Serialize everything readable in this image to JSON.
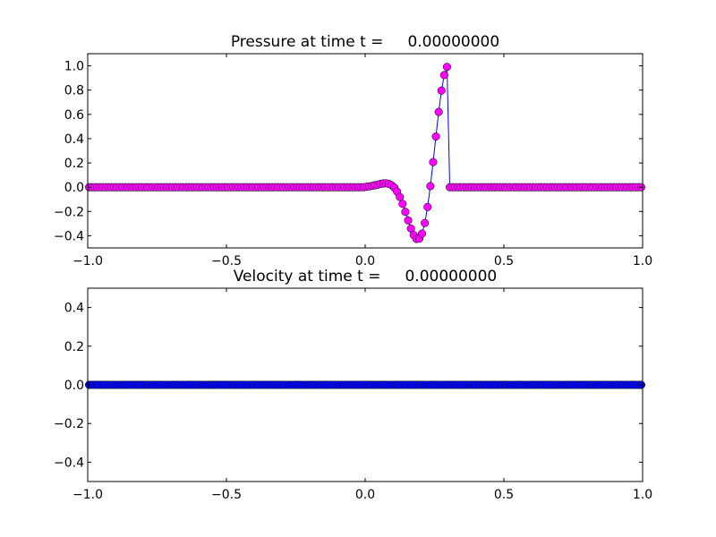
{
  "chart_data": [
    {
      "type": "line",
      "title": "Pressure at time t =     0.00000000",
      "x": [
        -0.995,
        -0.985,
        -0.975,
        -0.965,
        -0.955,
        -0.945,
        -0.935,
        -0.925,
        -0.915,
        -0.905,
        -0.895,
        -0.885,
        -0.875,
        -0.865,
        -0.855,
        -0.845,
        -0.835,
        -0.825,
        -0.815,
        -0.805,
        -0.795,
        -0.785,
        -0.775,
        -0.765,
        -0.755,
        -0.745,
        -0.735,
        -0.725,
        -0.715,
        -0.705,
        -0.695,
        -0.685,
        -0.675,
        -0.665,
        -0.655,
        -0.645,
        -0.635,
        -0.625,
        -0.615,
        -0.605,
        -0.595,
        -0.585,
        -0.575,
        -0.565,
        -0.555,
        -0.545,
        -0.535,
        -0.525,
        -0.515,
        -0.505,
        -0.495,
        -0.485,
        -0.475,
        -0.465,
        -0.455,
        -0.445,
        -0.435,
        -0.425,
        -0.415,
        -0.405,
        -0.395,
        -0.385,
        -0.375,
        -0.365,
        -0.355,
        -0.345,
        -0.335,
        -0.325,
        -0.315,
        -0.305,
        -0.295,
        -0.285,
        -0.275,
        -0.265,
        -0.255,
        -0.245,
        -0.235,
        -0.225,
        -0.215,
        -0.205,
        -0.195,
        -0.185,
        -0.175,
        -0.165,
        -0.155,
        -0.145,
        -0.135,
        -0.125,
        -0.115,
        -0.105,
        -0.095,
        -0.085,
        -0.075,
        -0.065,
        -0.055,
        -0.045,
        -0.035,
        -0.025,
        -0.015,
        -0.005,
        0.005,
        0.015,
        0.025,
        0.035,
        0.045,
        0.055,
        0.065,
        0.075,
        0.085,
        0.095,
        0.105,
        0.115,
        0.125,
        0.135,
        0.145,
        0.155,
        0.165,
        0.175,
        0.185,
        0.195,
        0.205,
        0.215,
        0.225,
        0.235,
        0.245,
        0.255,
        0.265,
        0.275,
        0.285,
        0.295,
        0.305,
        0.315,
        0.325,
        0.335,
        0.345,
        0.355,
        0.365,
        0.375,
        0.385,
        0.395,
        0.405,
        0.415,
        0.425,
        0.435,
        0.445,
        0.455,
        0.465,
        0.475,
        0.485,
        0.495,
        0.505,
        0.515,
        0.525,
        0.535,
        0.545,
        0.555,
        0.565,
        0.575,
        0.585,
        0.595,
        0.605,
        0.615,
        0.625,
        0.635,
        0.645,
        0.655,
        0.665,
        0.675,
        0.685,
        0.695,
        0.705,
        0.715,
        0.725,
        0.735,
        0.745,
        0.755,
        0.765,
        0.775,
        0.785,
        0.795,
        0.805,
        0.815,
        0.825,
        0.835,
        0.845,
        0.855,
        0.865,
        0.875,
        0.885,
        0.895,
        0.905,
        0.915,
        0.925,
        0.935,
        0.945,
        0.955,
        0.965,
        0.975,
        0.985,
        0.995
      ],
      "series": [
        {
          "color": "#0000ff",
          "marker_color": "#ff00ff",
          "values": [
            0,
            0,
            0,
            0,
            0,
            0,
            0,
            0,
            0,
            0,
            0,
            0,
            0,
            0,
            0,
            0,
            0,
            0,
            0,
            0,
            0,
            0,
            0,
            0,
            0,
            0,
            0,
            0,
            0,
            0,
            0,
            0,
            0,
            0,
            0,
            0,
            0,
            0,
            0,
            0,
            0,
            0,
            0,
            0,
            0,
            0,
            0,
            0,
            0,
            0,
            0,
            0,
            0,
            0,
            0,
            0,
            0,
            0,
            0,
            0,
            0,
            0,
            0,
            0,
            0,
            0,
            0,
            0,
            0,
            0,
            0,
            0,
            0,
            0,
            0,
            0,
            0,
            0,
            0,
            0,
            0,
            0,
            0,
            0,
            0,
            0,
            0,
            0,
            0,
            0,
            0,
            0,
            0,
            0,
            0,
            0,
            0,
            0,
            0,
            0,
            0.004,
            0.007,
            0.011,
            0.016,
            0.021,
            0.027,
            0.031,
            0.032,
            0.028,
            0.017,
            -0.003,
            -0.036,
            -0.08,
            -0.137,
            -0.203,
            -0.273,
            -0.34,
            -0.394,
            -0.426,
            -0.424,
            -0.382,
            -0.295,
            -0.163,
            0.009,
            0.207,
            0.418,
            0.62,
            0.796,
            0.924,
            0.991,
            0,
            0,
            0,
            0,
            0,
            0,
            0,
            0,
            0,
            0,
            0,
            0,
            0,
            0,
            0,
            0,
            0,
            0,
            0,
            0,
            0,
            0,
            0,
            0,
            0,
            0,
            0,
            0,
            0,
            0,
            0,
            0,
            0,
            0,
            0,
            0,
            0,
            0,
            0,
            0,
            0,
            0,
            0,
            0,
            0,
            0,
            0,
            0,
            0,
            0,
            0,
            0,
            0,
            0,
            0,
            0,
            0,
            0,
            0,
            0,
            0,
            0,
            0,
            0,
            0,
            0,
            0,
            0,
            0,
            0
          ]
        }
      ],
      "xlim": [
        -1.0,
        1.0
      ],
      "xticks": [
        {
          "value": -1.0,
          "label": "−1.0"
        },
        {
          "value": -0.5,
          "label": "−0.5"
        },
        {
          "value": 0.0,
          "label": "0.0"
        },
        {
          "value": 0.5,
          "label": "0.5"
        },
        {
          "value": 1.0,
          "label": "1.0"
        }
      ],
      "ylim": [
        -0.5,
        1.1
      ],
      "yticks": [
        {
          "value": -0.4,
          "label": "−0.4"
        },
        {
          "value": -0.2,
          "label": "−0.2"
        },
        {
          "value": 0.0,
          "label": "0.0"
        },
        0.2,
        0.4,
        0.6,
        0.8,
        {
          "value": 1.0,
          "label": "1.0"
        }
      ]
    },
    {
      "type": "line",
      "title": "Velocity at time t =     0.00000000",
      "x": [
        -0.995,
        -0.985,
        -0.975,
        -0.965,
        -0.955,
        -0.945,
        -0.935,
        -0.925,
        -0.915,
        -0.905,
        -0.895,
        -0.885,
        -0.875,
        -0.865,
        -0.855,
        -0.845,
        -0.835,
        -0.825,
        -0.815,
        -0.805,
        -0.795,
        -0.785,
        -0.775,
        -0.765,
        -0.755,
        -0.745,
        -0.735,
        -0.725,
        -0.715,
        -0.705,
        -0.695,
        -0.685,
        -0.675,
        -0.665,
        -0.655,
        -0.645,
        -0.635,
        -0.625,
        -0.615,
        -0.605,
        -0.595,
        -0.585,
        -0.575,
        -0.565,
        -0.555,
        -0.545,
        -0.535,
        -0.525,
        -0.515,
        -0.505,
        -0.495,
        -0.485,
        -0.475,
        -0.465,
        -0.455,
        -0.445,
        -0.435,
        -0.425,
        -0.415,
        -0.405,
        -0.395,
        -0.385,
        -0.375,
        -0.365,
        -0.355,
        -0.345,
        -0.335,
        -0.325,
        -0.315,
        -0.305,
        -0.295,
        -0.285,
        -0.275,
        -0.265,
        -0.255,
        -0.245,
        -0.235,
        -0.225,
        -0.215,
        -0.205,
        -0.195,
        -0.185,
        -0.175,
        -0.165,
        -0.155,
        -0.145,
        -0.135,
        -0.125,
        -0.115,
        -0.105,
        -0.095,
        -0.085,
        -0.075,
        -0.065,
        -0.055,
        -0.045,
        -0.035,
        -0.025,
        -0.015,
        -0.005,
        0.005,
        0.015,
        0.025,
        0.035,
        0.045,
        0.055,
        0.065,
        0.075,
        0.085,
        0.095,
        0.105,
        0.115,
        0.125,
        0.135,
        0.145,
        0.155,
        0.165,
        0.175,
        0.185,
        0.195,
        0.205,
        0.215,
        0.225,
        0.235,
        0.245,
        0.255,
        0.265,
        0.275,
        0.285,
        0.295,
        0.305,
        0.315,
        0.325,
        0.335,
        0.345,
        0.355,
        0.365,
        0.375,
        0.385,
        0.395,
        0.405,
        0.415,
        0.425,
        0.435,
        0.445,
        0.455,
        0.465,
        0.475,
        0.485,
        0.495,
        0.505,
        0.515,
        0.525,
        0.535,
        0.545,
        0.555,
        0.565,
        0.575,
        0.585,
        0.595,
        0.605,
        0.615,
        0.625,
        0.635,
        0.645,
        0.655,
        0.665,
        0.675,
        0.685,
        0.695,
        0.705,
        0.715,
        0.725,
        0.735,
        0.745,
        0.755,
        0.765,
        0.775,
        0.785,
        0.795,
        0.805,
        0.815,
        0.825,
        0.835,
        0.845,
        0.855,
        0.865,
        0.875,
        0.885,
        0.895,
        0.905,
        0.915,
        0.925,
        0.935,
        0.945,
        0.955,
        0.965,
        0.975,
        0.985,
        0.995
      ],
      "series": [
        {
          "color": "#0000ff",
          "marker_color": "#0000ff",
          "values": [
            0,
            0,
            0,
            0,
            0,
            0,
            0,
            0,
            0,
            0,
            0,
            0,
            0,
            0,
            0,
            0,
            0,
            0,
            0,
            0,
            0,
            0,
            0,
            0,
            0,
            0,
            0,
            0,
            0,
            0,
            0,
            0,
            0,
            0,
            0,
            0,
            0,
            0,
            0,
            0,
            0,
            0,
            0,
            0,
            0,
            0,
            0,
            0,
            0,
            0,
            0,
            0,
            0,
            0,
            0,
            0,
            0,
            0,
            0,
            0,
            0,
            0,
            0,
            0,
            0,
            0,
            0,
            0,
            0,
            0,
            0,
            0,
            0,
            0,
            0,
            0,
            0,
            0,
            0,
            0,
            0,
            0,
            0,
            0,
            0,
            0,
            0,
            0,
            0,
            0,
            0,
            0,
            0,
            0,
            0,
            0,
            0,
            0,
            0,
            0,
            0,
            0,
            0,
            0,
            0,
            0,
            0,
            0,
            0,
            0,
            0,
            0,
            0,
            0,
            0,
            0,
            0,
            0,
            0,
            0,
            0,
            0,
            0,
            0,
            0,
            0,
            0,
            0,
            0,
            0,
            0,
            0,
            0,
            0,
            0,
            0,
            0,
            0,
            0,
            0,
            0,
            0,
            0,
            0,
            0,
            0,
            0,
            0,
            0,
            0,
            0,
            0,
            0,
            0,
            0,
            0,
            0,
            0,
            0,
            0,
            0,
            0,
            0,
            0,
            0,
            0,
            0,
            0,
            0,
            0,
            0,
            0,
            0,
            0,
            0,
            0,
            0,
            0,
            0,
            0,
            0,
            0,
            0,
            0,
            0,
            0,
            0,
            0,
            0,
            0,
            0,
            0,
            0,
            0,
            0,
            0,
            0,
            0,
            0,
            0
          ]
        }
      ],
      "xlim": [
        -1.0,
        1.0
      ],
      "xticks": [
        {
          "value": -1.0,
          "label": "−1.0"
        },
        {
          "value": -0.5,
          "label": "−0.5"
        },
        {
          "value": 0.0,
          "label": "0.0"
        },
        {
          "value": 0.5,
          "label": "0.5"
        },
        {
          "value": 1.0,
          "label": "1.0"
        }
      ],
      "ylim": [
        -0.5,
        0.5
      ],
      "yticks": [
        {
          "value": -0.4,
          "label": "−0.4"
        },
        {
          "value": -0.2,
          "label": "−0.2"
        },
        {
          "value": 0.0,
          "label": "0.0"
        },
        0.2,
        0.4
      ]
    }
  ]
}
